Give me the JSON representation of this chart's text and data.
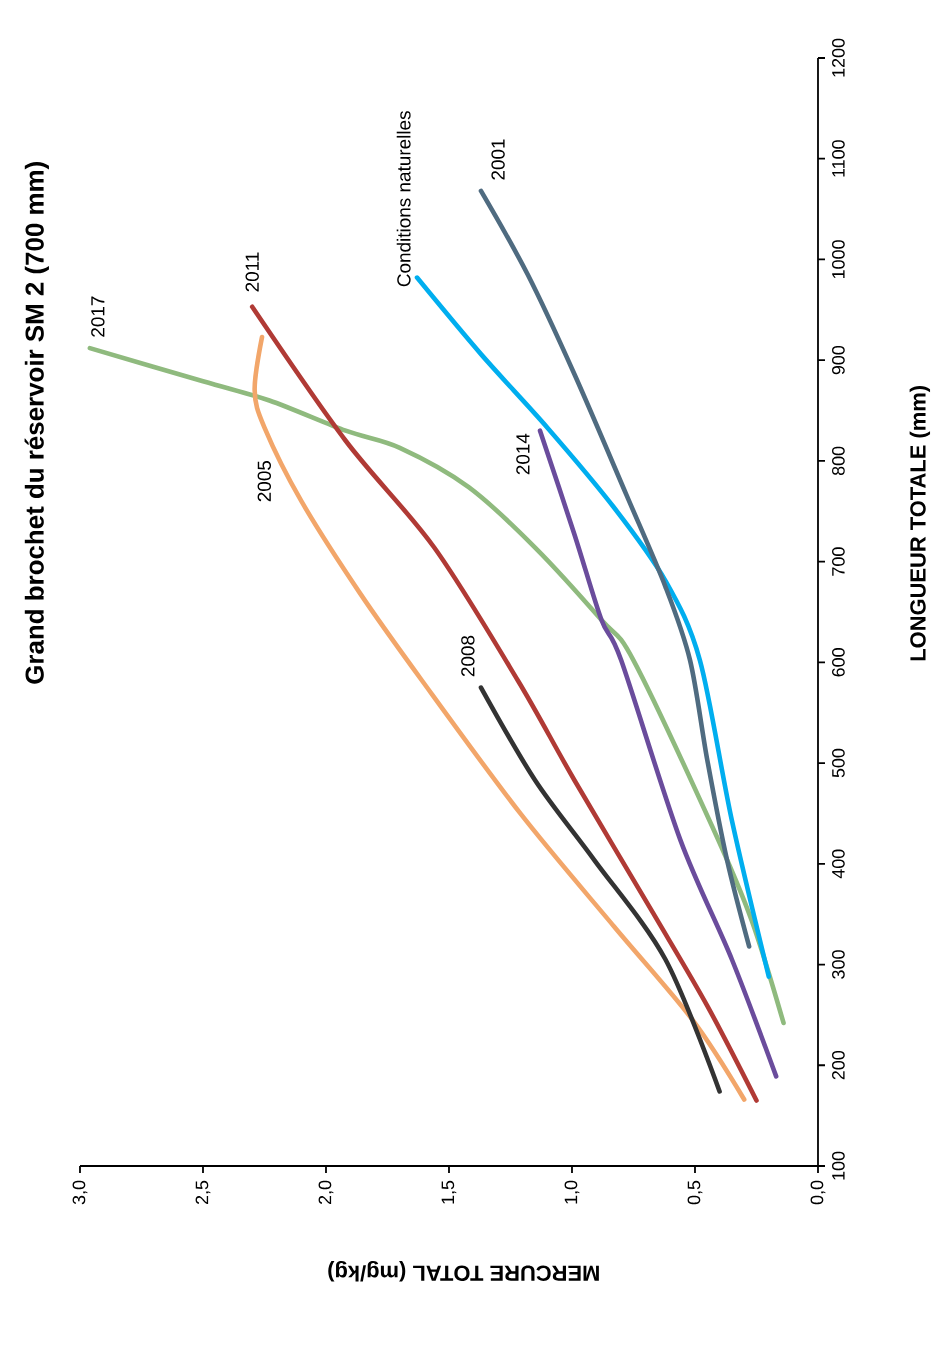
{
  "chart_data": {
    "type": "line",
    "title": "Grand brochet du réservoir SM 2 (700 mm)",
    "xlabel": "MERCURE TOTAL (mg/kg)",
    "ylabel": "LONGUEUR TOTALE (mm)",
    "xlim": [
      3,
      0
    ],
    "xticks": [
      {
        "value": 3,
        "label": "3,0"
      },
      {
        "value": 2.5,
        "label": "2,5"
      },
      {
        "value": 2,
        "label": "2,0"
      },
      {
        "value": 1.5,
        "label": "1,5"
      },
      {
        "value": 1,
        "label": "1,0"
      },
      {
        "value": 0.5,
        "label": "0,5"
      },
      {
        "value": 0,
        "label": "0,0"
      }
    ],
    "ylim": [
      100,
      1200
    ],
    "yticks": [
      100,
      200,
      300,
      400,
      500,
      600,
      700,
      800,
      900,
      1000,
      1100,
      1200
    ],
    "legend": false,
    "series": [
      {
        "name": "2017",
        "color": "#8fba7e",
        "x": [
          0.14,
          0.27,
          0.43,
          0.75,
          0.88,
          1.15,
          1.42,
          1.7,
          1.92,
          2.23,
          2.5,
          2.96
        ],
        "values": [
          242,
          344,
          437,
          602,
          642,
          714,
          774,
          813,
          830,
          860,
          879,
          912
        ]
      },
      {
        "name": "2011",
        "color": "#b03a35",
        "x": [
          0.25,
          0.45,
          0.67,
          0.99,
          1.22,
          1.56,
          1.92,
          2.3
        ],
        "values": [
          165,
          259,
          351,
          483,
          582,
          714,
          820,
          953
        ]
      },
      {
        "name": "2005",
        "color": "#f2a66a",
        "x": [
          0.3,
          0.51,
          0.83,
          1.21,
          1.61,
          1.86,
          2.1,
          2.25,
          2.29,
          2.26
        ],
        "values": [
          166,
          245,
          338,
          450,
          582,
          668,
          760,
          833,
          870,
          923
        ]
      },
      {
        "name": "2008",
        "color": "#333333",
        "x": [
          0.4,
          0.62,
          0.91,
          1.15,
          1.37
        ],
        "values": [
          174,
          305,
          404,
          483,
          575
        ]
      },
      {
        "name": "2014",
        "color": "#6a4c9c",
        "x": [
          0.17,
          0.35,
          0.56,
          0.8,
          0.88,
          0.99,
          1.13
        ],
        "values": [
          189,
          305,
          424,
          602,
          642,
          727,
          830
        ]
      },
      {
        "name": "Conditions naturelles",
        "color": "#00aeef",
        "x": [
          0.2,
          0.35,
          0.48,
          0.62,
          0.83,
          1.1,
          1.37,
          1.63
        ],
        "values": [
          288,
          443,
          602,
          681,
          754,
          833,
          906,
          982
        ]
      },
      {
        "name": "2001",
        "color": "#4f6b80",
        "x": [
          0.28,
          0.37,
          0.45,
          0.52,
          0.62,
          0.78,
          0.99,
          1.18,
          1.37
        ],
        "values": [
          318,
          404,
          503,
          602,
          675,
          767,
          886,
          985,
          1068
        ]
      }
    ]
  }
}
